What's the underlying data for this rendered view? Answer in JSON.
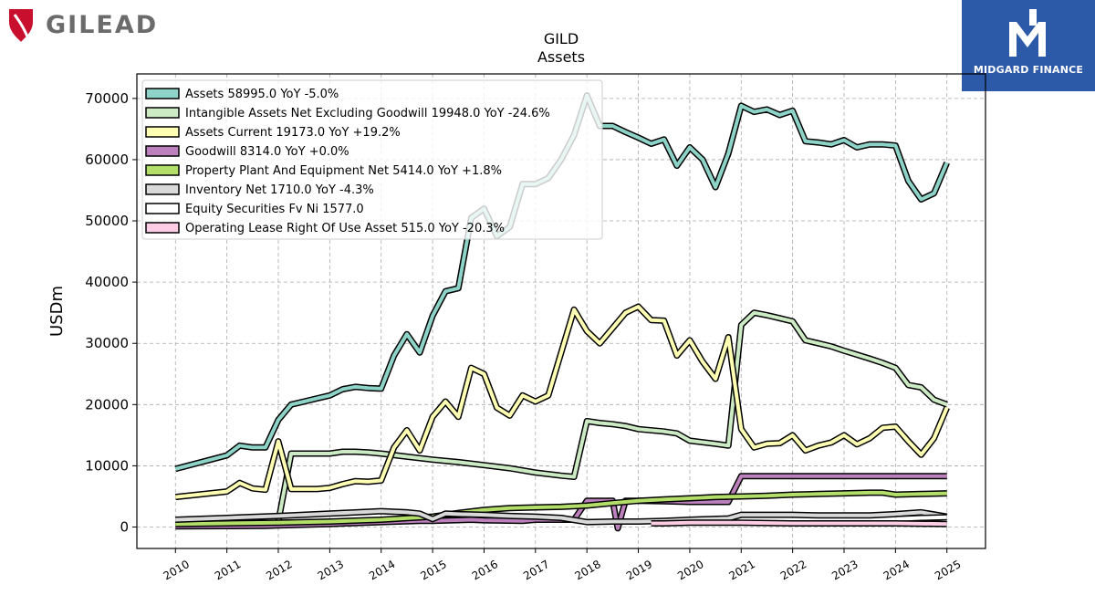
{
  "header": {
    "brand_name": "GILEAD",
    "partner_name": "MIDGARD FINANCE",
    "ticker": "GILD",
    "subtitle": "Assets"
  },
  "chart_data": {
    "type": "line",
    "title": "GILD",
    "subtitle": "Assets",
    "ylabel": "USDm",
    "xlabel": "",
    "ylim": [
      -3500,
      74000
    ],
    "xlim": [
      2009.25,
      2025.75
    ],
    "yticks": [
      0,
      10000,
      20000,
      30000,
      40000,
      50000,
      60000,
      70000
    ],
    "xticks": [
      "2010",
      "2011",
      "2012",
      "2013",
      "2014",
      "2015",
      "2016",
      "2017",
      "2018",
      "2019",
      "2020",
      "2021",
      "2022",
      "2023",
      "2024",
      "2025"
    ],
    "grid": true,
    "legend_position": "top-left",
    "series": [
      {
        "name": "Assets",
        "legend": "Assets  58995.0 YoY -5.0%",
        "color": "#8dd3c7",
        "points": [
          [
            2010,
            9500
          ],
          [
            2011,
            11700
          ],
          [
            2011.25,
            13300
          ],
          [
            2011.5,
            13000
          ],
          [
            2011.75,
            13000
          ],
          [
            2012,
            17500
          ],
          [
            2012.25,
            20000
          ],
          [
            2012.5,
            20500
          ],
          [
            2012.75,
            21000
          ],
          [
            2013,
            21500
          ],
          [
            2013.25,
            22500
          ],
          [
            2013.5,
            22900
          ],
          [
            2013.75,
            22700
          ],
          [
            2014,
            22600
          ],
          [
            2014.25,
            28000
          ],
          [
            2014.5,
            31500
          ],
          [
            2014.75,
            28500
          ],
          [
            2015,
            34500
          ],
          [
            2015.25,
            38500
          ],
          [
            2015.5,
            39000
          ],
          [
            2015.75,
            50500
          ],
          [
            2016,
            52000
          ],
          [
            2016.25,
            47500
          ],
          [
            2016.5,
            49000
          ],
          [
            2016.75,
            56000
          ],
          [
            2017,
            56000
          ],
          [
            2017.25,
            57000
          ],
          [
            2017.5,
            60000
          ],
          [
            2017.75,
            64000
          ],
          [
            2018,
            70500
          ],
          [
            2018.25,
            65500
          ],
          [
            2018.5,
            65500
          ],
          [
            2018.75,
            64500
          ],
          [
            2019,
            63600
          ],
          [
            2019.25,
            62600
          ],
          [
            2019.5,
            63300
          ],
          [
            2019.75,
            59000
          ],
          [
            2020,
            62000
          ],
          [
            2020.25,
            60000
          ],
          [
            2020.5,
            55500
          ],
          [
            2020.75,
            61000
          ],
          [
            2021,
            68800
          ],
          [
            2021.25,
            67800
          ],
          [
            2021.5,
            68200
          ],
          [
            2021.75,
            67300
          ],
          [
            2022,
            68000
          ],
          [
            2022.25,
            63000
          ],
          [
            2022.5,
            62800
          ],
          [
            2022.75,
            62500
          ],
          [
            2023,
            63200
          ],
          [
            2023.25,
            62000
          ],
          [
            2023.5,
            62500
          ],
          [
            2023.75,
            62500
          ],
          [
            2024,
            62300
          ],
          [
            2024.25,
            56500
          ],
          [
            2024.5,
            53500
          ],
          [
            2024.75,
            54500
          ],
          [
            2025,
            59500
          ]
        ]
      },
      {
        "name": "Intangible Assets Net Excluding Goodwill",
        "legend": "Intangible Assets Net Excluding Goodwill  19948.0 YoY -24.6%",
        "color": "#ccebc5",
        "points": [
          [
            2012,
            900
          ],
          [
            2012.25,
            12000
          ],
          [
            2012.5,
            12000
          ],
          [
            2012.75,
            12000
          ],
          [
            2013,
            12000
          ],
          [
            2013.25,
            12300
          ],
          [
            2013.5,
            12300
          ],
          [
            2013.75,
            12200
          ],
          [
            2014,
            12000
          ],
          [
            2014.5,
            11500
          ],
          [
            2015,
            11000
          ],
          [
            2015.5,
            10600
          ],
          [
            2016,
            10100
          ],
          [
            2016.5,
            9600
          ],
          [
            2017,
            8900
          ],
          [
            2017.5,
            8400
          ],
          [
            2017.75,
            8200
          ],
          [
            2018,
            17300
          ],
          [
            2018.25,
            17000
          ],
          [
            2018.5,
            16800
          ],
          [
            2018.75,
            16500
          ],
          [
            2019,
            16000
          ],
          [
            2019.5,
            15600
          ],
          [
            2019.75,
            15300
          ],
          [
            2020,
            14100
          ],
          [
            2020.5,
            13600
          ],
          [
            2020.75,
            13300
          ],
          [
            2021,
            33000
          ],
          [
            2021.25,
            35000
          ],
          [
            2021.5,
            34600
          ],
          [
            2021.75,
            34100
          ],
          [
            2022,
            33600
          ],
          [
            2022.25,
            30500
          ],
          [
            2022.5,
            30000
          ],
          [
            2022.75,
            29500
          ],
          [
            2023,
            28800
          ],
          [
            2023.5,
            27500
          ],
          [
            2023.75,
            26800
          ],
          [
            2024,
            26000
          ],
          [
            2024.25,
            23200
          ],
          [
            2024.5,
            22800
          ],
          [
            2024.75,
            20800
          ],
          [
            2025,
            20000
          ]
        ]
      },
      {
        "name": "Assets Current",
        "legend": "Assets Current  19173.0 YoY +19.2%",
        "color": "#ffffb3",
        "points": [
          [
            2010,
            4900
          ],
          [
            2011,
            5800
          ],
          [
            2011.25,
            7200
          ],
          [
            2011.5,
            6300
          ],
          [
            2011.75,
            6100
          ],
          [
            2012,
            14000
          ],
          [
            2012.25,
            6200
          ],
          [
            2012.5,
            6200
          ],
          [
            2012.75,
            6200
          ],
          [
            2013,
            6400
          ],
          [
            2013.25,
            7000
          ],
          [
            2013.5,
            7500
          ],
          [
            2013.75,
            7400
          ],
          [
            2014,
            7600
          ],
          [
            2014.25,
            13000
          ],
          [
            2014.5,
            15800
          ],
          [
            2014.75,
            12500
          ],
          [
            2015,
            18000
          ],
          [
            2015.25,
            20500
          ],
          [
            2015.5,
            18000
          ],
          [
            2015.75,
            26000
          ],
          [
            2016,
            25000
          ],
          [
            2016.25,
            19500
          ],
          [
            2016.5,
            18200
          ],
          [
            2016.75,
            21500
          ],
          [
            2017,
            20500
          ],
          [
            2017.25,
            21500
          ],
          [
            2017.5,
            28500
          ],
          [
            2017.75,
            35500
          ],
          [
            2018,
            32000
          ],
          [
            2018.25,
            30000
          ],
          [
            2018.5,
            32500
          ],
          [
            2018.75,
            35000
          ],
          [
            2019,
            36000
          ],
          [
            2019.25,
            33800
          ],
          [
            2019.5,
            33700
          ],
          [
            2019.75,
            28000
          ],
          [
            2020,
            30500
          ],
          [
            2020.25,
            27000
          ],
          [
            2020.5,
            24200
          ],
          [
            2020.75,
            31000
          ],
          [
            2021,
            16000
          ],
          [
            2021.25,
            13000
          ],
          [
            2021.5,
            13600
          ],
          [
            2021.75,
            13700
          ],
          [
            2022,
            15000
          ],
          [
            2022.25,
            12500
          ],
          [
            2022.5,
            13300
          ],
          [
            2022.75,
            13800
          ],
          [
            2023,
            15000
          ],
          [
            2023.25,
            13500
          ],
          [
            2023.5,
            14500
          ],
          [
            2023.75,
            16200
          ],
          [
            2024,
            16400
          ],
          [
            2024.25,
            14000
          ],
          [
            2024.5,
            11800
          ],
          [
            2024.75,
            14500
          ],
          [
            2025,
            19500
          ]
        ]
      },
      {
        "name": "Goodwill",
        "legend": "Goodwill  8314.0 YoY +0.0%",
        "color": "#bc80bd",
        "points": [
          [
            2010,
            100
          ],
          [
            2011,
            150
          ],
          [
            2011.75,
            200
          ],
          [
            2012,
            250
          ],
          [
            2013,
            500
          ],
          [
            2014,
            800
          ],
          [
            2014.75,
            1000
          ],
          [
            2015,
            1000
          ],
          [
            2015.75,
            1200
          ],
          [
            2016,
            1100
          ],
          [
            2016.75,
            1000
          ],
          [
            2017,
            1200
          ],
          [
            2017.75,
            1200
          ],
          [
            2018,
            4300
          ],
          [
            2018.25,
            4300
          ],
          [
            2018.5,
            4300
          ],
          [
            2018.6,
            -200
          ],
          [
            2018.75,
            4300
          ],
          [
            2019,
            4300
          ],
          [
            2019.5,
            4200
          ],
          [
            2020,
            4100
          ],
          [
            2020.5,
            4100
          ],
          [
            2020.75,
            4100
          ],
          [
            2021,
            8300
          ],
          [
            2021.25,
            8300
          ],
          [
            2021.5,
            8300
          ],
          [
            2022,
            8300
          ],
          [
            2023,
            8300
          ],
          [
            2024,
            8300
          ],
          [
            2025,
            8300
          ]
        ]
      },
      {
        "name": "Property Plant And Equipment Net",
        "legend": "Property Plant And Equipment Net  5414.0 YoY +1.8%",
        "color": "#b3de69",
        "points": [
          [
            2010,
            500
          ],
          [
            2011,
            600
          ],
          [
            2012,
            700
          ],
          [
            2013,
            900
          ],
          [
            2014,
            1200
          ],
          [
            2015,
            1700
          ],
          [
            2015.5,
            2300
          ],
          [
            2016,
            2800
          ],
          [
            2016.5,
            3100
          ],
          [
            2017,
            3200
          ],
          [
            2017.5,
            3300
          ],
          [
            2018,
            3500
          ],
          [
            2018.5,
            3900
          ],
          [
            2019,
            4300
          ],
          [
            2019.5,
            4500
          ],
          [
            2020,
            4700
          ],
          [
            2020.5,
            4900
          ],
          [
            2021,
            5000
          ],
          [
            2021.5,
            5100
          ],
          [
            2022,
            5300
          ],
          [
            2022.5,
            5400
          ],
          [
            2023,
            5500
          ],
          [
            2023.5,
            5600
          ],
          [
            2023.75,
            5600
          ],
          [
            2024,
            5300
          ],
          [
            2024.5,
            5400
          ],
          [
            2025,
            5500
          ]
        ]
      },
      {
        "name": "Inventory Net",
        "legend": "Inventory Net  1710.0 YoY -4.3%",
        "color": "#d9d9d9",
        "points": [
          [
            2010,
            1200
          ],
          [
            2011,
            1500
          ],
          [
            2012,
            1800
          ],
          [
            2013,
            2200
          ],
          [
            2014,
            2600
          ],
          [
            2014.5,
            2400
          ],
          [
            2014.75,
            2200
          ],
          [
            2015,
            1300
          ],
          [
            2015.25,
            2200
          ],
          [
            2015.5,
            2100
          ],
          [
            2016,
            2000
          ],
          [
            2016.5,
            1800
          ],
          [
            2017,
            1700
          ],
          [
            2017.5,
            1500
          ],
          [
            2018,
            800
          ],
          [
            2018.5,
            900
          ],
          [
            2019,
            900
          ],
          [
            2019.5,
            1000
          ],
          [
            2020,
            1200
          ],
          [
            2020.75,
            1400
          ],
          [
            2021,
            2000
          ],
          [
            2021.5,
            2000
          ],
          [
            2022,
            2000
          ],
          [
            2022.5,
            1900
          ],
          [
            2023,
            1900
          ],
          [
            2023.5,
            1900
          ],
          [
            2024,
            2100
          ],
          [
            2024.5,
            2400
          ],
          [
            2025,
            1700
          ]
        ]
      },
      {
        "name": "Equity Securities Fv Ni",
        "legend": "Equity Securities Fv Ni  1577.0",
        "color": "#ffffff",
        "points": [
          [
            2024,
            1300
          ],
          [
            2024.5,
            1500
          ],
          [
            2025,
            1600
          ]
        ]
      },
      {
        "name": "Operating Lease Right Of Use Asset",
        "legend": "Operating Lease Right Of Use Asset  515.0 YoY -20.3%",
        "color": "#fccde5",
        "points": [
          [
            2019.25,
            600
          ],
          [
            2019.5,
            600
          ],
          [
            2020,
            700
          ],
          [
            2021,
            700
          ],
          [
            2022,
            600
          ],
          [
            2023,
            600
          ],
          [
            2024,
            600
          ],
          [
            2025,
            500
          ]
        ]
      }
    ]
  }
}
